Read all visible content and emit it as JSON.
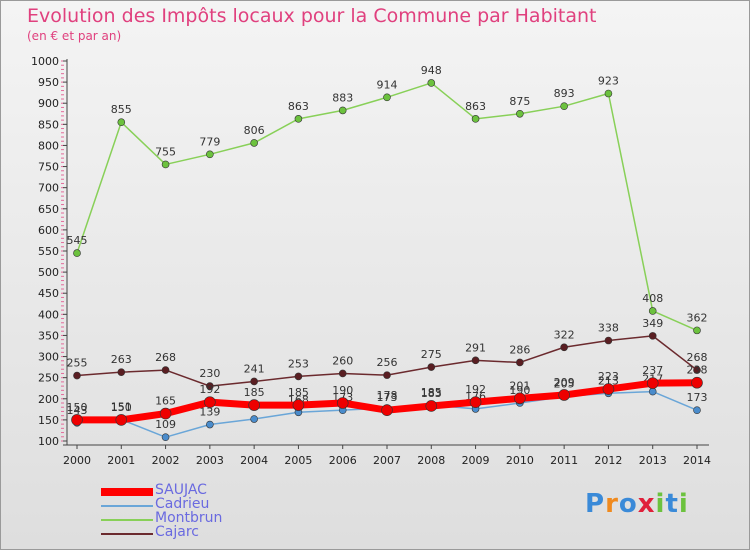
{
  "chart_data": {
    "type": "line",
    "title": "Evolution des Impôts locaux pour la Commune par Habitant",
    "subtitle": "(en € et par an)",
    "xlabel": "",
    "ylabel": "",
    "ylim": [
      100,
      1000
    ],
    "ytick_step": 50,
    "x": [
      "2000",
      "2001",
      "2002",
      "2003",
      "2004",
      "2005",
      "2006",
      "2007",
      "2008",
      "2009",
      "2010",
      "2011",
      "2012",
      "2013",
      "2014"
    ],
    "grid": false,
    "legend_position": "bottom-left",
    "series": [
      {
        "name": "Montbrun",
        "color": "#88d058",
        "marker": "#6cc23e",
        "width": 1.5,
        "values": [
          545,
          855,
          755,
          779,
          806,
          863,
          883,
          914,
          948,
          863,
          875,
          893,
          923,
          408,
          362
        ],
        "labels": [
          "545",
          "855",
          "755",
          "779",
          "806",
          "863",
          "883",
          "914",
          "948",
          "863",
          "875",
          "893",
          "923",
          "408",
          "362"
        ]
      },
      {
        "name": "Cajarc",
        "color": "#6b2a2e",
        "marker": "#5a1e22",
        "width": 1.5,
        "values": [
          255,
          263,
          268,
          230,
          241,
          253,
          260,
          256,
          275,
          291,
          286,
          322,
          338,
          349,
          268
        ],
        "labels": [
          "255",
          "263",
          "268",
          "230",
          "241",
          "253",
          "260",
          "256",
          "275",
          "291",
          "286",
          "322",
          "338",
          "349",
          "268"
        ]
      },
      {
        "name": "Cadrieu",
        "color": "#6aa6d8",
        "marker": "#4a8ccc",
        "width": 1.5,
        "values": [
          143,
          151,
          109,
          139,
          152,
          168,
          173,
          178,
          185,
          176,
          190,
          205,
          213,
          217,
          173
        ],
        "labels": [
          "143",
          "151",
          "109",
          "139",
          "",
          "168",
          "173",
          "178",
          "185",
          "176",
          "190",
          "205",
          "213",
          "217",
          "173"
        ]
      },
      {
        "name": "SAUJAC",
        "color": "#ff0000",
        "marker": "#ee0000",
        "width": 7,
        "values": [
          150,
          150,
          165,
          192,
          185,
          185,
          190,
          173,
          183,
          192,
          201,
          209,
          223,
          237,
          238
        ],
        "labels": [
          "150",
          "150",
          "165",
          "192",
          "185",
          "185",
          "190",
          "173",
          "183",
          "192",
          "201",
          "209",
          "223",
          "237",
          "238"
        ]
      }
    ]
  },
  "legend": [
    {
      "name": "SAUJAC",
      "color": "#ff0000",
      "thickness": 8
    },
    {
      "name": "Cadrieu",
      "color": "#6aa6d8",
      "thickness": 2
    },
    {
      "name": "Montbrun",
      "color": "#88d058",
      "thickness": 2
    },
    {
      "name": "Cajarc",
      "color": "#6b2a2e",
      "thickness": 2
    }
  ],
  "logo": {
    "letters": [
      "P",
      "r",
      "o",
      "x",
      "i",
      "t",
      "i"
    ],
    "colors": [
      "#3a8ad8",
      "#f08a1e",
      "#3a8ad8",
      "#e0203a",
      "#6cc23e",
      "#3a8ad8",
      "#6cc23e"
    ]
  }
}
